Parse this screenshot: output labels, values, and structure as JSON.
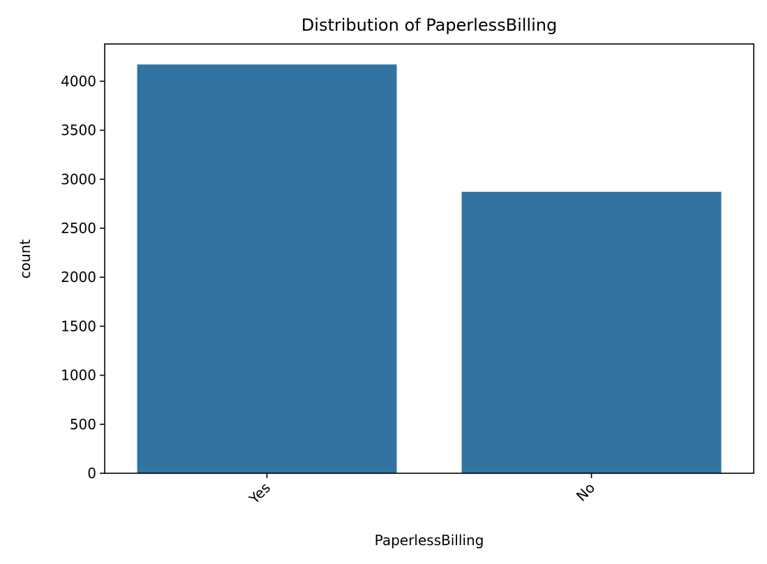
{
  "chart_data": {
    "type": "bar",
    "title": "Distribution of PaperlessBilling",
    "xlabel": "PaperlessBilling",
    "ylabel": "count",
    "categories": [
      "Yes",
      "No"
    ],
    "values": [
      4171,
      2872
    ],
    "ylim": [
      0,
      4380
    ],
    "yticks": [
      0,
      500,
      1000,
      1500,
      2000,
      2500,
      3000,
      3500,
      4000
    ],
    "xtick_rotation": 45,
    "grid": false,
    "bar_color": "#3274a1"
  }
}
